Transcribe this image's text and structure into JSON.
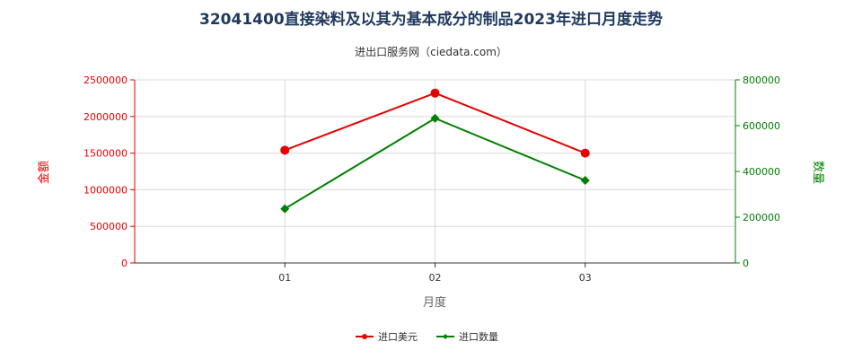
{
  "chart_data": {
    "type": "line",
    "title": "32041400直接染料及以其为基本成分的制品2023年进口月度走势",
    "subtitle": "进出口服务网（ciedata.com）",
    "categories": [
      "01",
      "02",
      "03"
    ],
    "xlabel": "月度",
    "ylabel_left": "金额",
    "ylabel_right": "数量",
    "ylim_left": [
      0,
      2500000
    ],
    "ylim_right": [
      0,
      800000
    ],
    "yticks_left": [
      "0",
      "500000",
      "1000000",
      "1500000",
      "2000000",
      "2500000"
    ],
    "yticks_right": [
      "0",
      "200000",
      "400000",
      "600000",
      "800000"
    ],
    "grid": true,
    "legend_position": "bottom-center",
    "series": [
      {
        "name": "进口美元",
        "axis": "left",
        "color": "#e60000",
        "values": [
          1540000,
          2320000,
          1500000
        ]
      },
      {
        "name": "进口数量",
        "axis": "right",
        "color": "#008000",
        "values": [
          237000,
          632000,
          361000
        ]
      }
    ]
  }
}
